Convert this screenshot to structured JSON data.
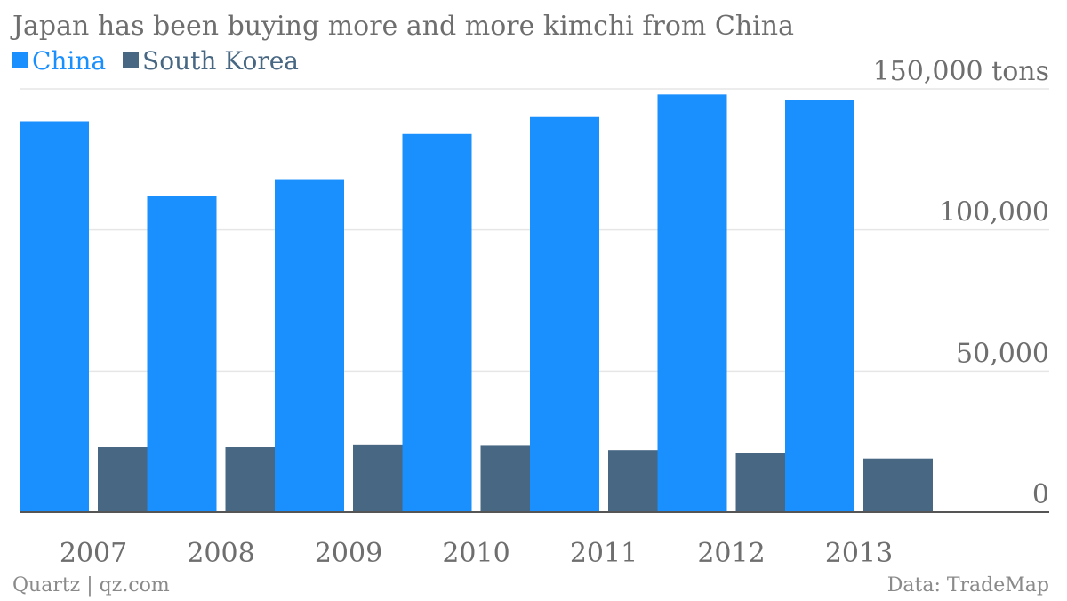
{
  "title": "Japan has been buying more and more kimchi from China",
  "footer": {
    "source": "Quartz | qz.com",
    "data": "Data: TradeMap"
  },
  "colors": {
    "china": "#1a8ffe",
    "korea": "#476783",
    "text": "#6e6e6e",
    "grid": "#e6e6e6",
    "axis": "#555555"
  },
  "chart_data": {
    "type": "bar",
    "categories": [
      "2007",
      "2008",
      "2009",
      "2010",
      "2011",
      "2012",
      "2013"
    ],
    "series": [
      {
        "name": "China",
        "values": [
          138500,
          112000,
          118000,
          134000,
          140000,
          148000,
          146000
        ]
      },
      {
        "name": "South Korea",
        "values": [
          23000,
          23000,
          24000,
          23500,
          22000,
          21000,
          19000
        ]
      }
    ],
    "ylim": [
      0,
      150000
    ],
    "yticks": [
      {
        "value": 0,
        "label": "0"
      },
      {
        "value": 50000,
        "label": "50,000"
      },
      {
        "value": 100000,
        "label": "100,000"
      },
      {
        "value": 150000,
        "label": "150,000 tons"
      }
    ],
    "grid": true,
    "legend": "top-left"
  }
}
